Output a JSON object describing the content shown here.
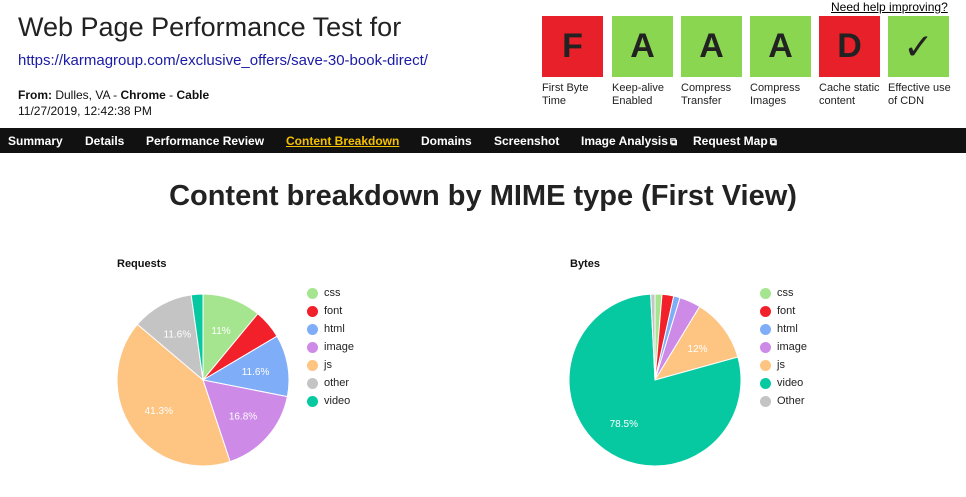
{
  "header": {
    "title": "Web Page Performance Test for",
    "url": "https://karmagroup.com/exclusive_offers/save-30-book-direct/",
    "from_label": "From:",
    "from_location": " Dulles, VA - ",
    "from_browser": "Chrome",
    "from_sep": " - ",
    "from_connection": "Cable",
    "date": "11/27/2019, 12:42:38 PM",
    "help_link": "Need help improving?"
  },
  "grades": [
    {
      "grade": "F",
      "label": "First Byte Time",
      "color": "#e8202a"
    },
    {
      "grade": "A",
      "label": "Keep-alive Enabled",
      "color": "#8bd651"
    },
    {
      "grade": "A",
      "label": "Compress Transfer",
      "color": "#8bd651"
    },
    {
      "grade": "A",
      "label": "Compress Images",
      "color": "#8bd651"
    },
    {
      "grade": "D",
      "label": "Cache static content",
      "color": "#e8202a"
    },
    {
      "grade": "✓",
      "label": "Effective use of CDN",
      "color": "#8bd651"
    }
  ],
  "nav": {
    "items": [
      "Summary",
      "Details",
      "Performance Review",
      "Content Breakdown",
      "Domains",
      "Screenshot",
      "Image Analysis",
      "Request Map"
    ],
    "active": "Content Breakdown",
    "external_icon": "external-link-icon"
  },
  "page_heading": "Content breakdown by MIME type (First View)",
  "chart_data": [
    {
      "type": "pie",
      "title": "Requests",
      "legend_position": "right",
      "categories": [
        "css",
        "font",
        "html",
        "image",
        "js",
        "other",
        "video"
      ],
      "colors": [
        "#a6e58f",
        "#f2202b",
        "#7fadf7",
        "#cd8ae7",
        "#fdc482",
        "#c4c4c4",
        "#06c9a2"
      ],
      "values": [
        11.0,
        5.5,
        11.6,
        16.8,
        41.3,
        11.6,
        2.2
      ],
      "data_labels": [
        "11%",
        "",
        "11.6%",
        "16.8%",
        "41.3%",
        "11.6%",
        ""
      ]
    },
    {
      "type": "pie",
      "title": "Bytes",
      "legend_position": "right",
      "categories": [
        "css",
        "font",
        "html",
        "image",
        "js",
        "video",
        "Other"
      ],
      "colors": [
        "#a6e58f",
        "#f2202b",
        "#7fadf7",
        "#cd8ae7",
        "#fdc482",
        "#06c9a2",
        "#c4c4c4"
      ],
      "values": [
        1.3,
        2.2,
        1.2,
        4.0,
        12.0,
        78.5,
        0.8
      ],
      "data_labels": [
        "",
        "",
        "",
        "",
        "12%",
        "78.5%",
        ""
      ]
    }
  ]
}
